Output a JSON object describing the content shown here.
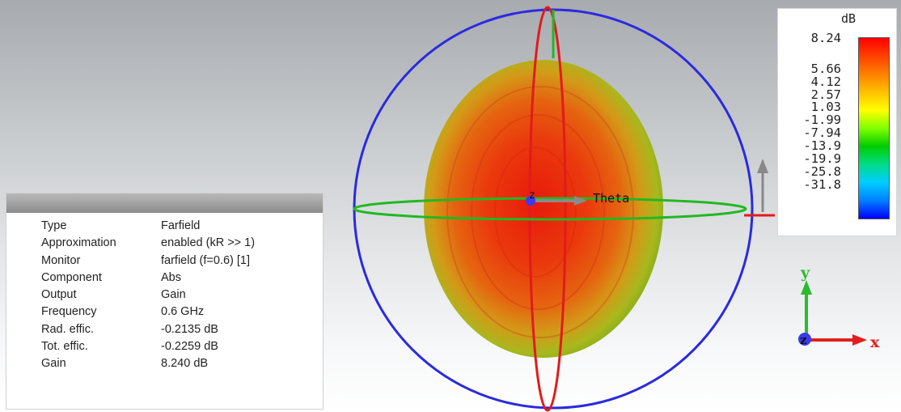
{
  "farfield_info": {
    "rows": [
      {
        "key": "Type",
        "value": "Farfield"
      },
      {
        "key": "Approximation",
        "value": "enabled (kR >> 1)"
      },
      {
        "key": "Monitor",
        "value": "farfield (f=0.6) [1]"
      },
      {
        "key": "Component",
        "value": "Abs"
      },
      {
        "key": "Output",
        "value": "Gain"
      },
      {
        "key": "Frequency",
        "value": "0.6 GHz"
      },
      {
        "key": "Rad. effic.",
        "value": "-0.2135 dB"
      },
      {
        "key": "Tot. effic.",
        "value": "-0.2259 dB"
      },
      {
        "key": "Gain",
        "value": "8.240 dB"
      }
    ]
  },
  "legend": {
    "unit": "dB",
    "ticks": [
      "8.24",
      "5.66",
      "4.12",
      "2.57",
      "1.03",
      "-1.99",
      "-7.94",
      "-13.9",
      "-19.9",
      "-25.8",
      "-31.8"
    ],
    "colors": [
      "#ff0000",
      "#ff4000",
      "#ff8000",
      "#ffc000",
      "#ffff00",
      "#80ff00",
      "#00cc00",
      "#00dd88",
      "#00ccff",
      "#0080ff",
      "#0000ff"
    ]
  },
  "scene": {
    "theta_label": "Theta",
    "z_label": "z",
    "axes": {
      "x": "x",
      "y": "y",
      "z": "z"
    },
    "colors": {
      "circle": "#2a2ae0",
      "theta_ring": "#e11b1b",
      "phi_ring": "#20b820",
      "pattern_core": "#e81c0c",
      "pattern_edge": "#8bbb1a"
    }
  }
}
